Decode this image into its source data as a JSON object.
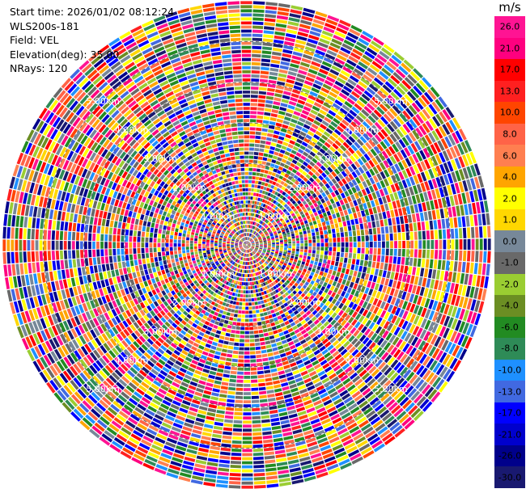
{
  "info": {
    "start_time": "Start time: 2026/01/02 08:12:24",
    "instrument": "WLS200s-181",
    "field": "Field: VEL",
    "elevation": "Elevation(deg): 35.00",
    "nrays": "NRays: 120"
  },
  "chart_data": {
    "type": "heatmap",
    "subtype": "polar-ppi",
    "n_rays": 120,
    "max_range_km": 6.0,
    "range_ring_labels": [
      "1.00km",
      "2.00km",
      "3.00km",
      "4.00km",
      "5.00km"
    ],
    "range_ring_values_km": [
      1,
      2,
      3,
      4,
      5
    ],
    "colorbar": {
      "unit": "m/s",
      "tick_labels": [
        "26.0",
        "21.0",
        "17.0",
        "13.0",
        "10.0",
        "8.0",
        "6.0",
        "4.0",
        "2.0",
        "1.0",
        "0.0",
        "-1.0",
        "-2.0",
        "-4.0",
        "-6.0",
        "-8.0",
        "-10.0",
        "-13.0",
        "-17.0",
        "-21.0",
        "-26.0",
        "-30.0"
      ],
      "colors": [
        "#ff1493",
        "#ff007f",
        "#ff0000",
        "#ff2020",
        "#ff4500",
        "#ff6347",
        "#ff7f50",
        "#ffa500",
        "#ffff00",
        "#ffd700",
        "#778899",
        "#696969",
        "#9acd32",
        "#6b8e23",
        "#228b22",
        "#2e8b57",
        "#1e90ff",
        "#4169e1",
        "#0000ff",
        "#0000cd",
        "#00008b",
        "#191970"
      ]
    },
    "field_pattern": "random velocity values across all gates (noise)"
  }
}
